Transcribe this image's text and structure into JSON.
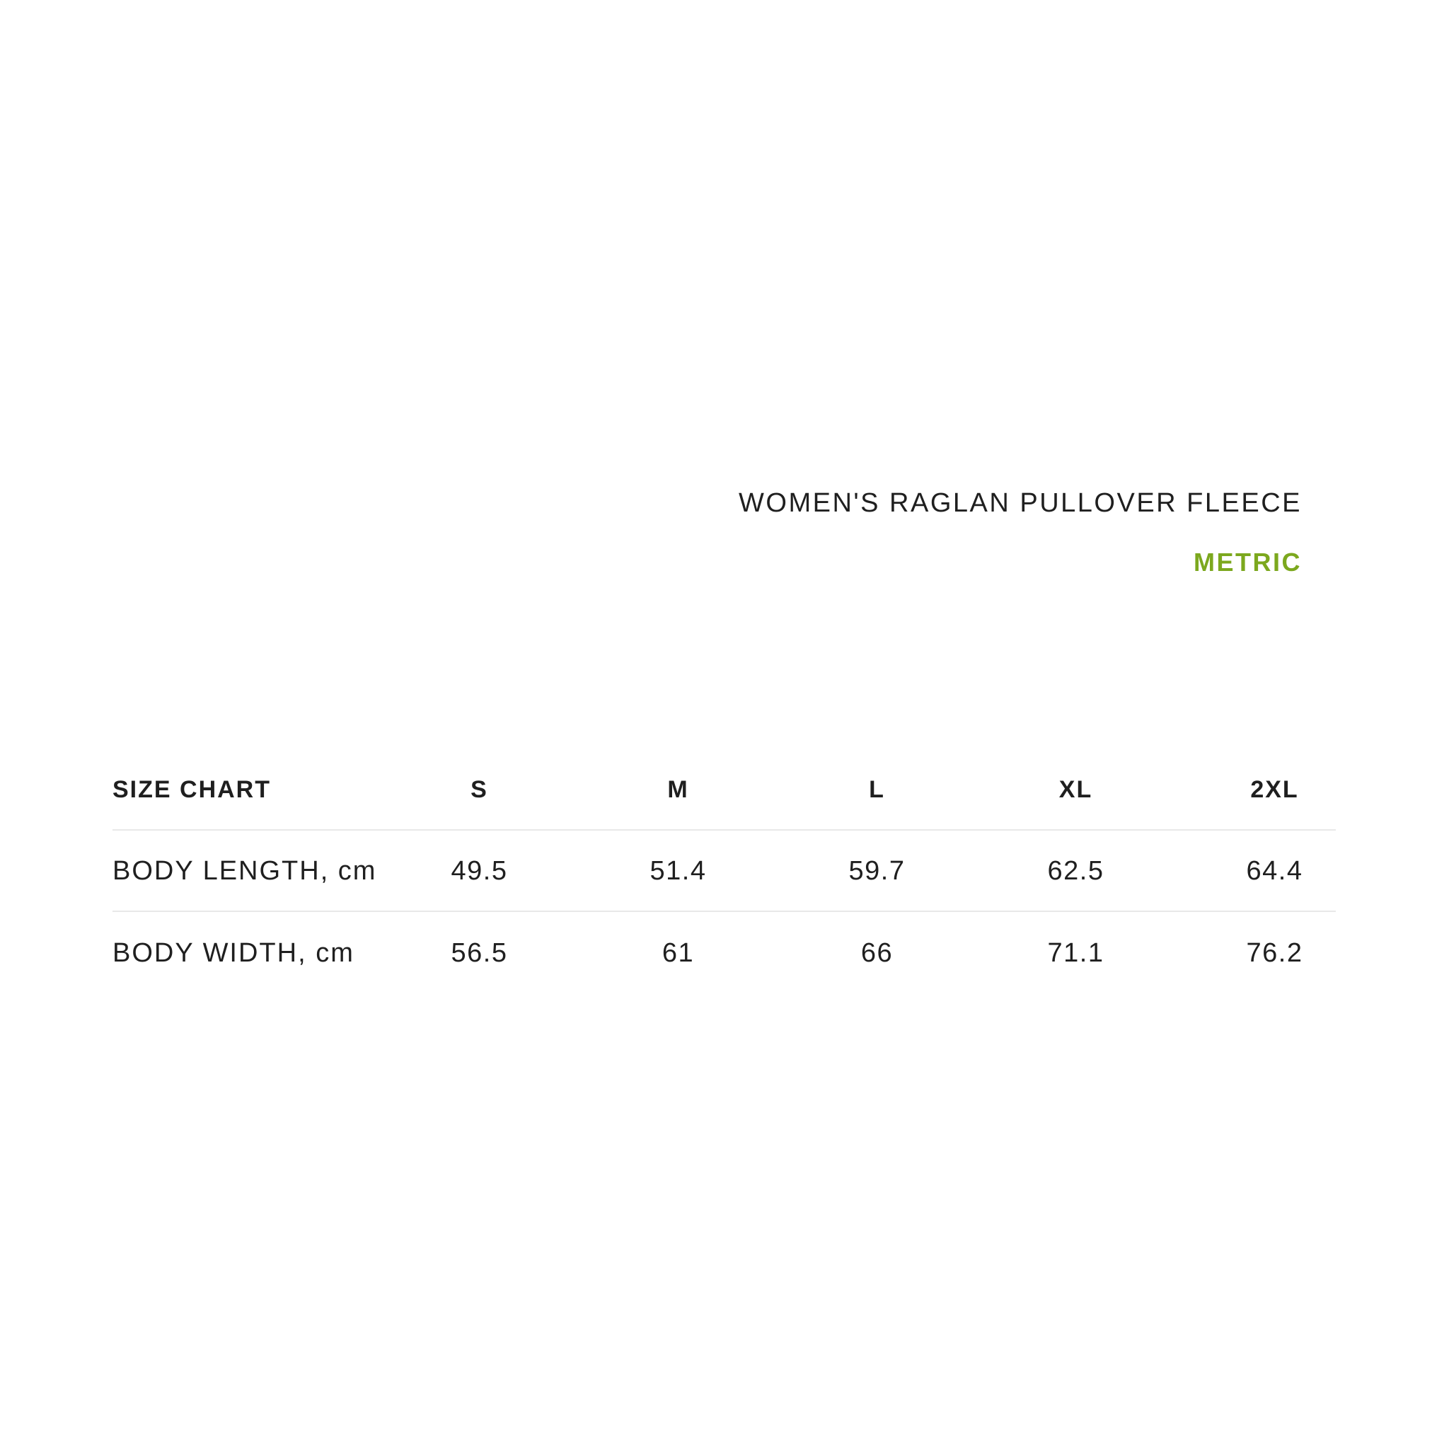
{
  "page": {
    "background": "#ffffff",
    "text_color": "#1f1f1f",
    "accent_color": "#7ca81e",
    "divider_color": "#e8e8e8",
    "product_title": "WOMEN'S RAGLAN PULLOVER FLEECE",
    "unit_toggle_label": "METRIC"
  },
  "size_chart": {
    "header_label": "SIZE CHART",
    "size_columns": [
      "S",
      "M",
      "L",
      "XL",
      "2XL"
    ],
    "rows": [
      {
        "label": "BODY LENGTH, cm",
        "values": [
          "49.5",
          "51.4",
          "59.7",
          "62.5",
          "64.4"
        ]
      },
      {
        "label": "BODY WIDTH, cm",
        "values": [
          "56.5",
          "61",
          "66",
          "71.1",
          "76.2"
        ]
      }
    ]
  },
  "chart_data": {
    "type": "table",
    "title": "WOMEN'S RAGLAN PULLOVER FLEECE",
    "subtitle": "METRIC",
    "columns": [
      "SIZE CHART",
      "S",
      "M",
      "L",
      "XL",
      "2XL"
    ],
    "rows": [
      [
        "BODY LENGTH, cm",
        49.5,
        51.4,
        59.7,
        62.5,
        64.4
      ],
      [
        "BODY WIDTH, cm",
        56.5,
        61,
        66,
        71.1,
        76.2
      ]
    ]
  }
}
